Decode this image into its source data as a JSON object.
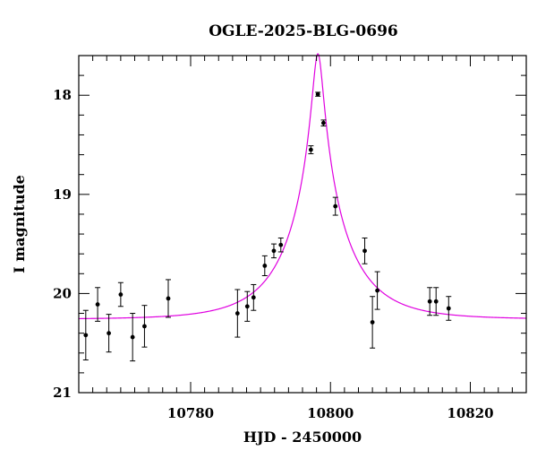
{
  "chart_data": {
    "type": "scatter",
    "title": "OGLE-2025-BLG-0696",
    "xlabel": "HJD - 2450000",
    "ylabel": "I magnitude",
    "xlim": [
      10764,
      10828
    ],
    "ylim": [
      21,
      17.6
    ],
    "y_inverted": true,
    "grid": false,
    "x_major_ticks": [
      10780,
      10800,
      10820
    ],
    "x_tick_labels": [
      "10780",
      "10800",
      "10820"
    ],
    "x_minor_step": 2,
    "y_major_ticks": [
      18,
      19,
      20,
      21
    ],
    "y_tick_labels": [
      "18",
      "19",
      "20",
      "21"
    ],
    "y_minor_step": 0.2,
    "point_color": "#000000",
    "model_color": "#e000e0",
    "points": [
      {
        "x": 10765.0,
        "y": 20.42,
        "err": 0.25
      },
      {
        "x": 10766.7,
        "y": 20.11,
        "err": 0.17
      },
      {
        "x": 10768.3,
        "y": 20.4,
        "err": 0.19
      },
      {
        "x": 10770.0,
        "y": 20.01,
        "err": 0.12
      },
      {
        "x": 10771.7,
        "y": 20.44,
        "err": 0.24
      },
      {
        "x": 10773.4,
        "y": 20.33,
        "err": 0.21
      },
      {
        "x": 10776.8,
        "y": 20.05,
        "err": 0.19
      },
      {
        "x": 10786.7,
        "y": 20.2,
        "err": 0.24
      },
      {
        "x": 10788.1,
        "y": 20.13,
        "err": 0.15
      },
      {
        "x": 10789.0,
        "y": 20.04,
        "err": 0.13
      },
      {
        "x": 10790.6,
        "y": 19.72,
        "err": 0.1
      },
      {
        "x": 10791.9,
        "y": 19.57,
        "err": 0.07
      },
      {
        "x": 10792.9,
        "y": 19.51,
        "err": 0.07
      },
      {
        "x": 10797.2,
        "y": 18.55,
        "err": 0.04
      },
      {
        "x": 10798.2,
        "y": 17.99,
        "err": 0.02
      },
      {
        "x": 10799.0,
        "y": 18.28,
        "err": 0.03
      },
      {
        "x": 10800.7,
        "y": 19.12,
        "err": 0.09
      },
      {
        "x": 10804.9,
        "y": 19.57,
        "err": 0.13
      },
      {
        "x": 10806.0,
        "y": 20.29,
        "err": 0.26
      },
      {
        "x": 10806.7,
        "y": 19.97,
        "err": 0.19
      },
      {
        "x": 10814.2,
        "y": 20.08,
        "err": 0.14
      },
      {
        "x": 10815.1,
        "y": 20.08,
        "err": 0.14
      },
      {
        "x": 10816.9,
        "y": 20.15,
        "err": 0.12
      }
    ],
    "model": {
      "type": "pspl",
      "t0": 10798.2,
      "u0": 0.085,
      "tE": 8.5,
      "baseline_mag": 20.26
    }
  }
}
